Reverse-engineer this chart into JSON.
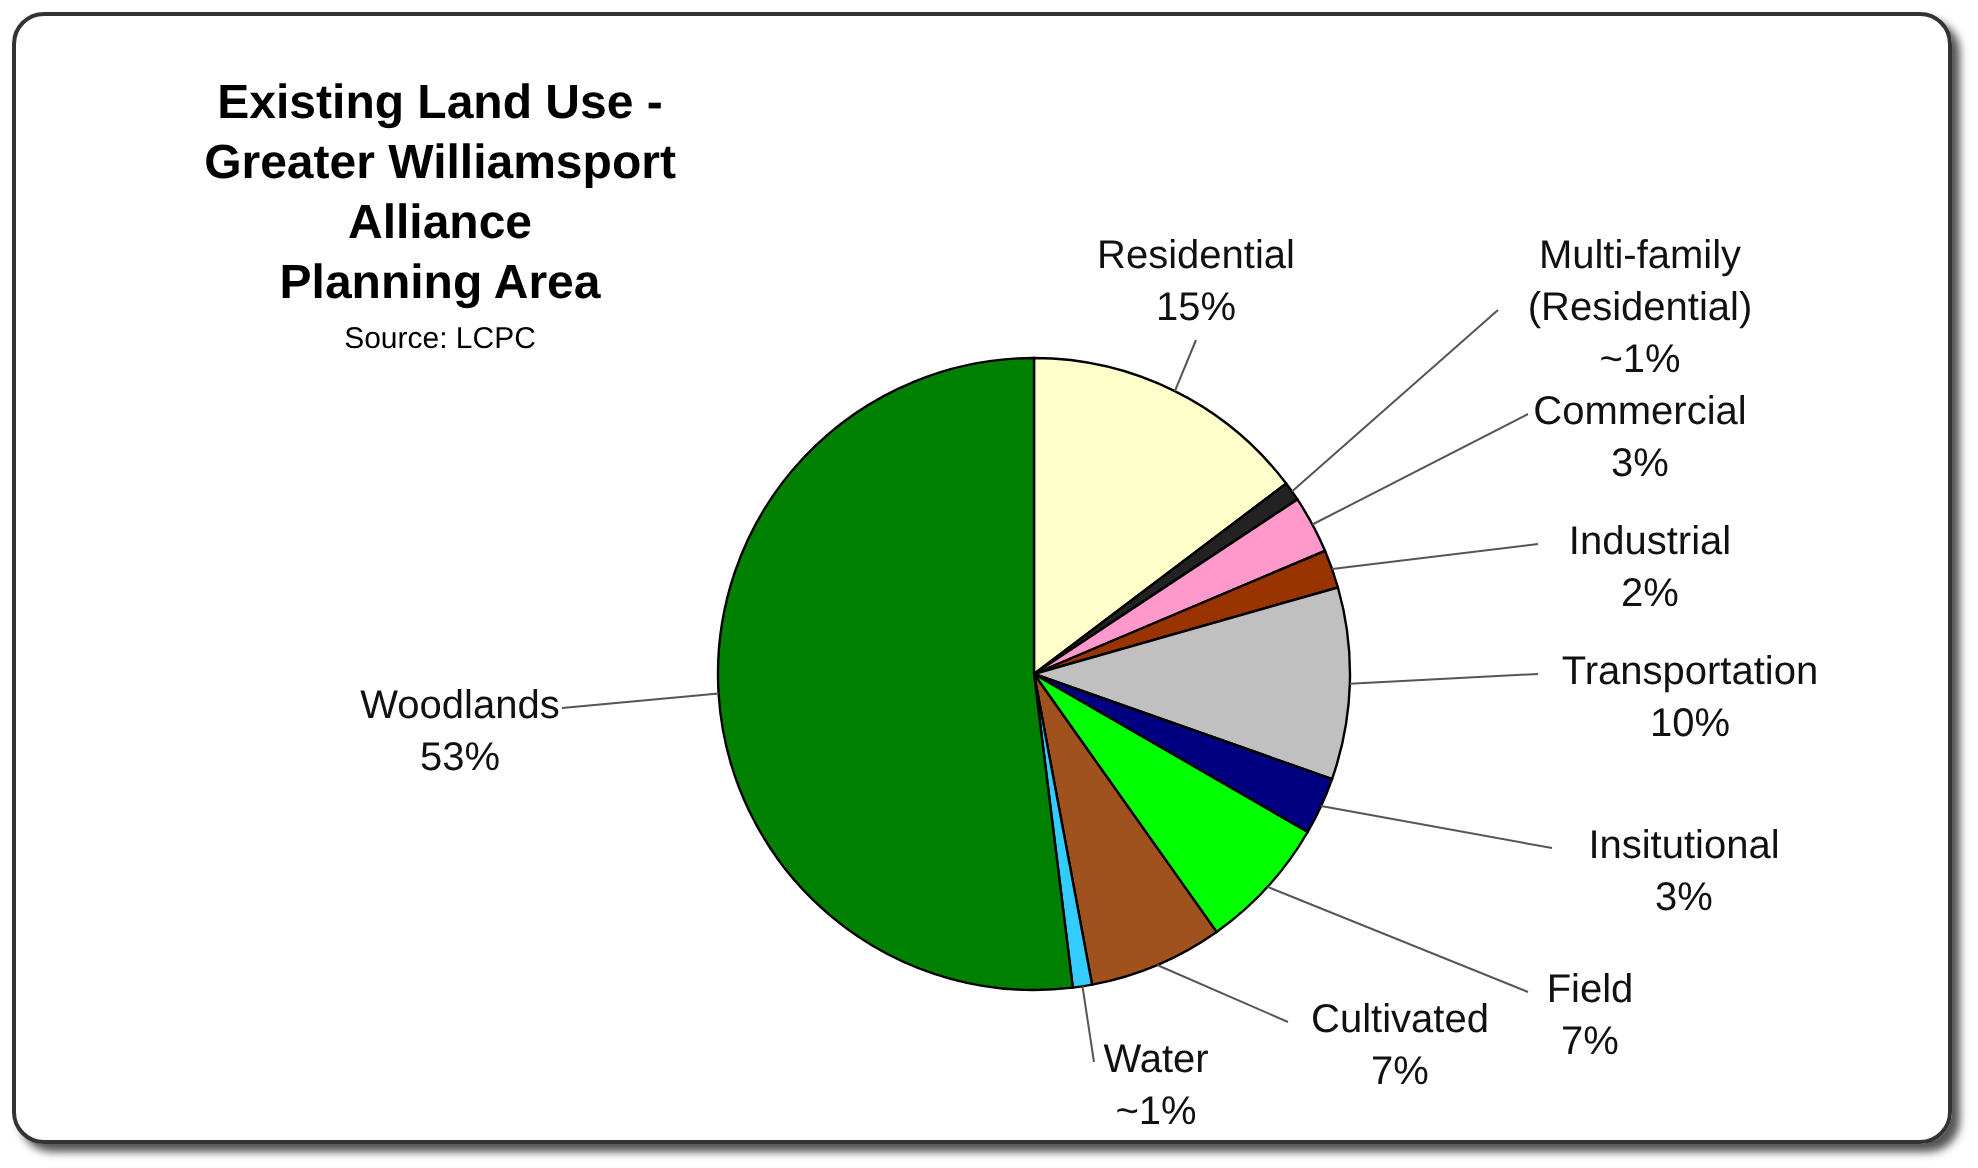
{
  "chart_data": {
    "type": "pie",
    "title": "Existing Land Use -\nGreater Williamsport\nAlliance\nPlanning Area",
    "annotations": [
      "Source:  LCPC"
    ],
    "categories": [
      "Residential",
      "Multi-family\n(Residential)",
      "Commercial",
      "Industrial",
      "Transportation",
      "Insitutional",
      "Field",
      "Cultivated",
      "Water",
      "Woodlands"
    ],
    "values": [
      15,
      1,
      3,
      2,
      10,
      3,
      7,
      7,
      1,
      53
    ],
    "value_labels": [
      "15%",
      "~1%",
      "3%",
      "2%",
      "10%",
      "3%",
      "7%",
      "7%",
      "~1%",
      "53%"
    ],
    "colors": [
      "#ffffcc",
      "#222222",
      "#ff99cc",
      "#993300",
      "#c0c0c0",
      "#000080",
      "#00ff00",
      "#a0521e",
      "#33ccff",
      "#008000"
    ]
  }
}
